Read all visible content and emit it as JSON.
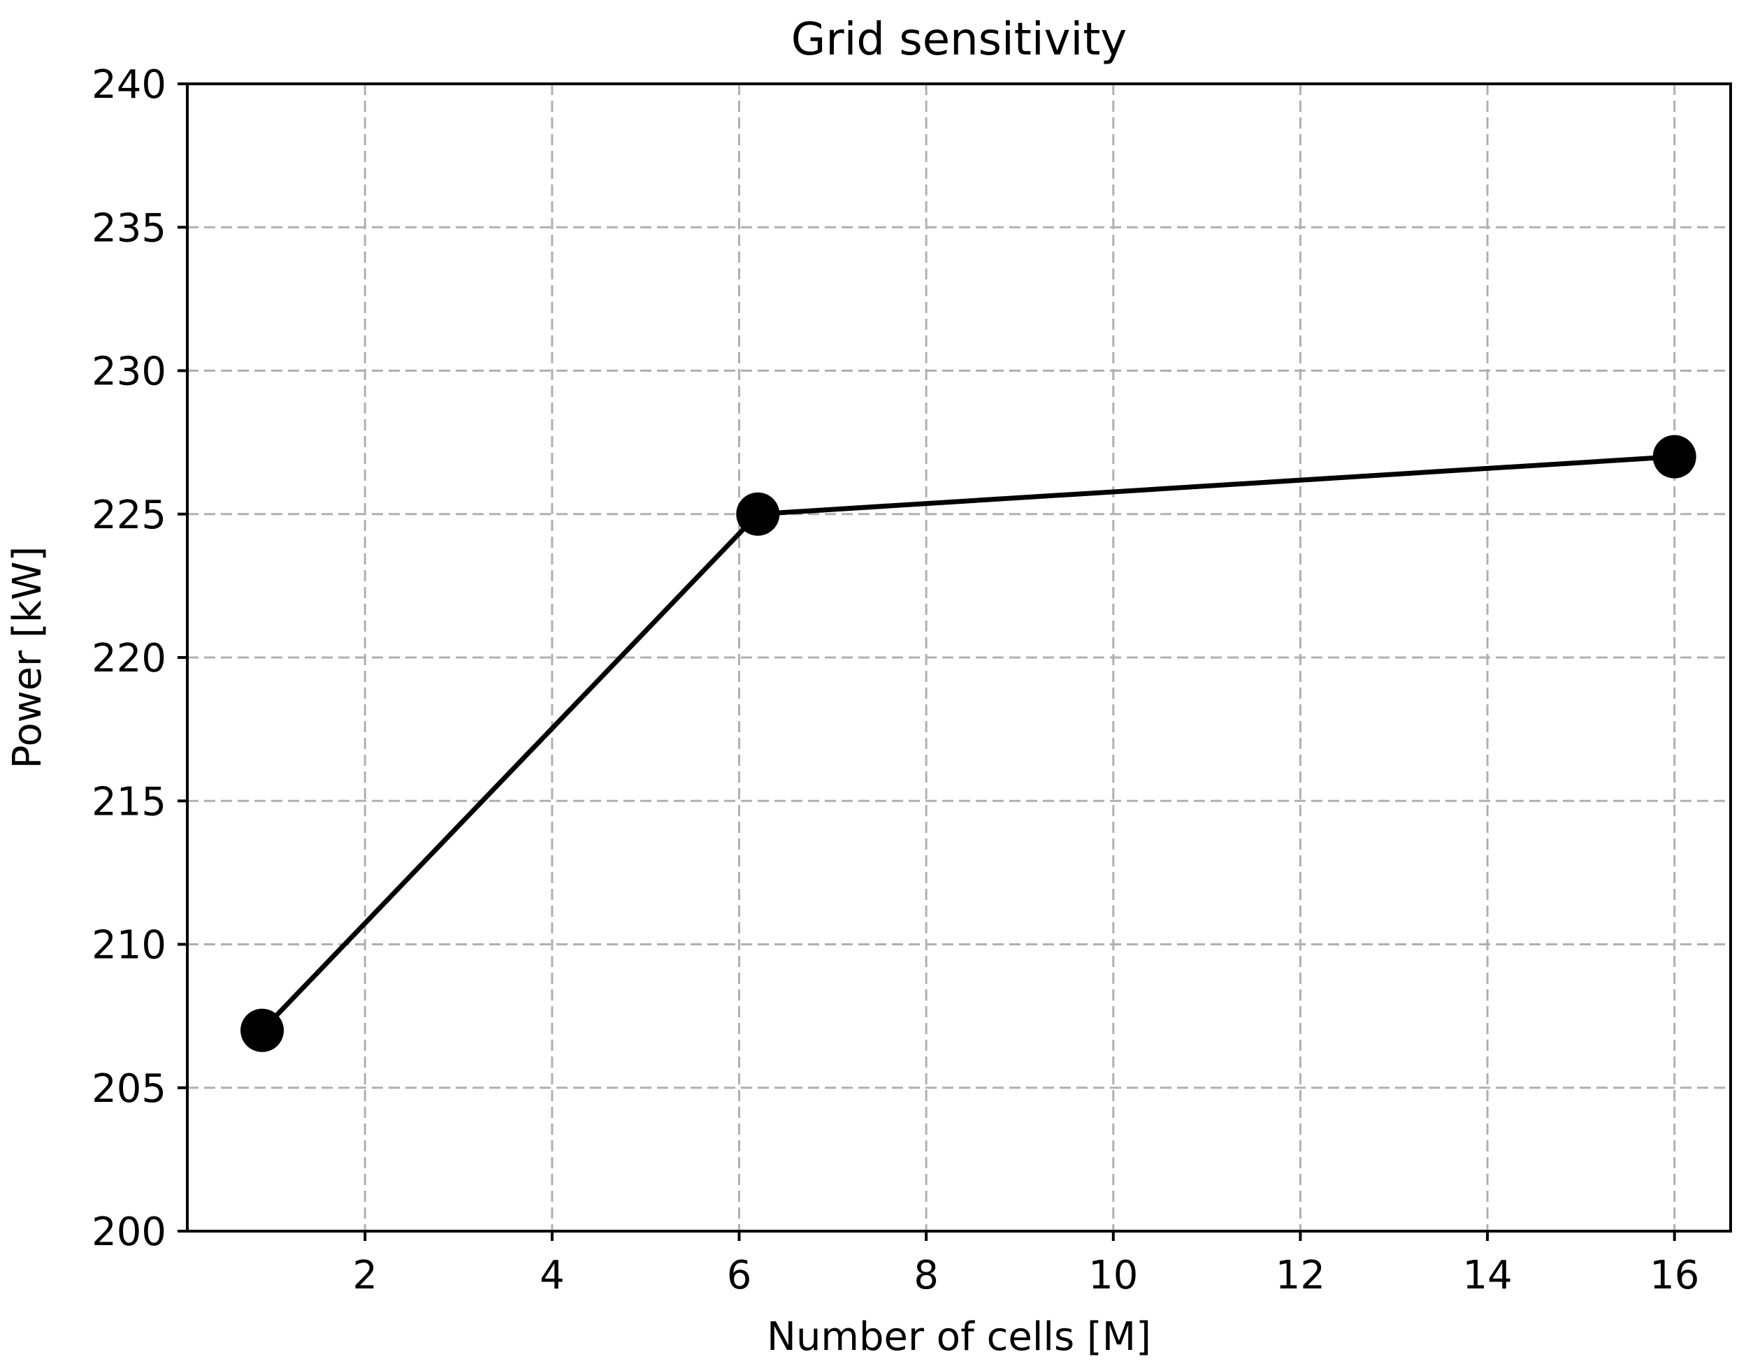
{
  "chart_data": {
    "type": "line",
    "title": "Grid sensitivity",
    "xlabel": "Number of cells [M]",
    "ylabel": "Power [kW]",
    "xlim": [
      0.1,
      16.6
    ],
    "ylim": [
      200,
      240
    ],
    "xticks": [
      2,
      4,
      6,
      8,
      10,
      12,
      14,
      16
    ],
    "xtick_labels": [
      "2",
      "4",
      "6",
      "8",
      "10",
      "12",
      "14",
      "16"
    ],
    "yticks": [
      200,
      205,
      210,
      215,
      220,
      225,
      230,
      235,
      240
    ],
    "ytick_labels": [
      "200",
      "205",
      "210",
      "215",
      "220",
      "225",
      "230",
      "235",
      "240"
    ],
    "grid": true,
    "series": [
      {
        "x": [
          0.9,
          6.2,
          16
        ],
        "y": [
          207,
          225,
          227
        ],
        "color": "#000000",
        "marker": "circle"
      }
    ]
  }
}
